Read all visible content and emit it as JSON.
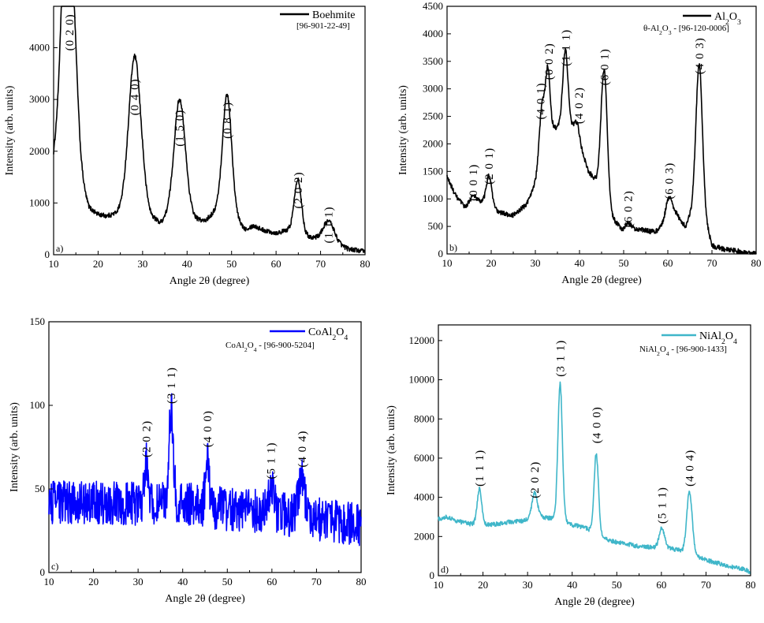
{
  "chart_data": [
    {
      "type": "line",
      "panel_label": "a)",
      "xlabel": "Angle 2θ (degree)",
      "ylabel": "Intensity (arb. units)",
      "xlim": [
        10,
        80
      ],
      "ylim": [
        0,
        4800
      ],
      "xticks": [
        10,
        20,
        30,
        40,
        50,
        60,
        70,
        80
      ],
      "yticks": [
        0,
        1000,
        2000,
        3000,
        4000
      ],
      "legend_position": "top-right",
      "series": [
        {
          "name": "Boehmite",
          "name_parts": [
            "Boehmite"
          ],
          "reference": "[96-901-22-49]",
          "reference_parts": [
            "[96-901-22-49]"
          ],
          "color": "#000000",
          "noise": 45,
          "baseline": [
            [
              10,
              1800
            ],
            [
              11,
              2300
            ],
            [
              12,
              3200
            ],
            [
              16,
              1300
            ],
            [
              18,
              900
            ],
            [
              20,
              780
            ],
            [
              22,
              750
            ],
            [
              24,
              800
            ],
            [
              26,
              950
            ],
            [
              30,
              1100
            ],
            [
              32,
              750
            ],
            [
              34,
              620
            ],
            [
              36,
              800
            ],
            [
              40,
              900
            ],
            [
              42,
              700
            ],
            [
              44,
              650
            ],
            [
              47,
              900
            ],
            [
              51,
              700
            ],
            [
              53,
              500
            ],
            [
              55,
              560
            ],
            [
              57,
              480
            ],
            [
              60,
              420
            ],
            [
              63,
              480
            ],
            [
              66,
              380
            ],
            [
              70,
              300
            ],
            [
              73,
              250
            ],
            [
              76,
              120
            ],
            [
              80,
              60
            ]
          ],
          "peaks": [
            [
              13.5,
              4050,
              1.4
            ],
            [
              28.2,
              2800,
              1.3
            ],
            [
              38.3,
              2150,
              1.2
            ],
            [
              49.0,
              2300,
              1.0
            ],
            [
              64.9,
              1050,
              0.8
            ],
            [
              71.8,
              380,
              1.2
            ]
          ]
        }
      ],
      "annotations": [
        {
          "label": "(0 2 0)",
          "x": 13.5,
          "y": 4300
        },
        {
          "label": "(0 4 0)",
          "x": 28.2,
          "y": 3050
        },
        {
          "label": "(1 5 0)",
          "x": 38.3,
          "y": 2450
        },
        {
          "label": "(0 8 1)",
          "x": 49.0,
          "y": 2600
        },
        {
          "label": "(2 0 2)",
          "x": 64.9,
          "y": 1250
        },
        {
          "label": "(1 1 1)",
          "x": 71.8,
          "y": 580
        }
      ]
    },
    {
      "type": "line",
      "panel_label": "b)",
      "xlabel": "Angle 2θ (degree)",
      "ylabel": "Intensity (arb. units)",
      "xlim": [
        10,
        80
      ],
      "ylim": [
        0,
        4500
      ],
      "xticks": [
        10,
        20,
        30,
        40,
        50,
        60,
        70,
        80
      ],
      "yticks": [
        0,
        500,
        1000,
        1500,
        2000,
        2500,
        3000,
        3500,
        4000,
        4500
      ],
      "legend_position": "top-right",
      "series": [
        {
          "name": "Al2O3",
          "name_parts": [
            "Al",
            "2",
            "O",
            "3"
          ],
          "reference": "θ-Al2O3 - [96-120-0006]",
          "reference_parts": [
            "θ-Al",
            "2",
            "O",
            "3",
            " - [96-120-0006]"
          ],
          "color": "#000000",
          "noise": 45,
          "baseline": [
            [
              10,
              1400
            ],
            [
              12,
              1050
            ],
            [
              14,
              850
            ],
            [
              16,
              900
            ],
            [
              18,
              950
            ],
            [
              22,
              750
            ],
            [
              25,
              700
            ],
            [
              28,
              900
            ],
            [
              30,
              1300
            ],
            [
              33,
              2300
            ],
            [
              36,
              2300
            ],
            [
              39,
              2300
            ],
            [
              42,
              1500
            ],
            [
              45,
              1200
            ],
            [
              47,
              700
            ],
            [
              50,
              400
            ],
            [
              53,
              450
            ],
            [
              57,
              400
            ],
            [
              59,
              500
            ],
            [
              62,
              700
            ],
            [
              64,
              500
            ],
            [
              66,
              900
            ],
            [
              68,
              800
            ],
            [
              70,
              150
            ],
            [
              73,
              80
            ],
            [
              78,
              30
            ],
            [
              80,
              0
            ]
          ],
          "peaks": [
            [
              15.9,
              150,
              0.8
            ],
            [
              19.5,
              550,
              0.6
            ],
            [
              31.5,
              900,
              0.6
            ],
            [
              32.8,
              1100,
              0.5
            ],
            [
              36.8,
              1400,
              0.6
            ],
            [
              39.5,
              200,
              0.5
            ],
            [
              45.6,
              2300,
              0.7
            ],
            [
              51.0,
              150,
              0.7
            ],
            [
              60.3,
              450,
              0.8
            ],
            [
              67.1,
              2600,
              0.7
            ]
          ]
        }
      ],
      "annotations": [
        {
          "label": "(0 0 1)",
          "x": 15.9,
          "y": 1300
        },
        {
          "label": "(2 0 1)",
          "x": 19.5,
          "y": 1600
        },
        {
          "label": "(4 0 1)",
          "x": 31.2,
          "y": 2780
        },
        {
          "label": "(0 0 2)",
          "x": 33.0,
          "y": 3500
        },
        {
          "label": "(1 1 1)",
          "x": 36.9,
          "y": 3750
        },
        {
          "label": "(4 0 2)",
          "x": 39.8,
          "y": 2700
        },
        {
          "label": "(6 0 1)",
          "x": 45.6,
          "y": 3400
        },
        {
          "label": "(6 0 2)",
          "x": 51.0,
          "y": 820
        },
        {
          "label": "(6 0 3)",
          "x": 60.3,
          "y": 1330
        },
        {
          "label": "(4 0 3)",
          "x": 67.1,
          "y": 3600
        }
      ]
    },
    {
      "type": "line",
      "panel_label": "c)",
      "xlabel": "Angle 2θ (degree)",
      "ylabel": "Intensity (arb. units)",
      "xlim": [
        10,
        80
      ],
      "ylim": [
        0,
        150
      ],
      "xticks": [
        10,
        20,
        30,
        40,
        50,
        60,
        70,
        80
      ],
      "yticks": [
        0,
        50,
        100,
        150
      ],
      "legend_position": "top-right",
      "series": [
        {
          "name": "CoAl2O4",
          "name_parts": [
            "CoAl",
            "2",
            "O",
            "4"
          ],
          "reference": "CoAl2O4 - [96-900-5204]",
          "reference_parts": [
            "CoAl",
            "2",
            "O",
            "4",
            " - [96-900-5204]"
          ],
          "color": "#0000ff",
          "noise": 13,
          "baseline": [
            [
              10,
              42
            ],
            [
              20,
              42
            ],
            [
              30,
              41
            ],
            [
              40,
              41
            ],
            [
              50,
              38
            ],
            [
              60,
              36
            ],
            [
              70,
              32
            ],
            [
              80,
              28
            ]
          ],
          "peaks": [
            [
              31.8,
              28,
              0.4
            ],
            [
              37.4,
              55,
              0.5
            ],
            [
              45.5,
              28,
              0.4
            ],
            [
              59.8,
              15,
              0.6
            ],
            [
              66.7,
              22,
              0.7
            ]
          ]
        }
      ],
      "annotations": [
        {
          "label": "(2 0 2)",
          "x": 31.8,
          "y": 80
        },
        {
          "label": "(3 1 1)",
          "x": 37.4,
          "y": 112
        },
        {
          "label": "(4 0 0)",
          "x": 45.5,
          "y": 86
        },
        {
          "label": "(5 1 1)",
          "x": 59.8,
          "y": 67
        },
        {
          "label": "(4 0 4)",
          "x": 66.7,
          "y": 74
        }
      ]
    },
    {
      "type": "line",
      "panel_label": "d)",
      "xlabel": "Angle 2θ (degree)",
      "ylabel": "Intensity (arb. units)",
      "xlim": [
        10,
        80
      ],
      "ylim": [
        0,
        12800
      ],
      "xticks": [
        10,
        20,
        30,
        40,
        50,
        60,
        70,
        80
      ],
      "yticks": [
        0,
        2000,
        4000,
        6000,
        8000,
        10000,
        12000
      ],
      "legend_position": "top-right",
      "series": [
        {
          "name": "NiAl2O4",
          "name_parts": [
            "NiAl",
            "2",
            "O",
            "4"
          ],
          "reference": "NiAl2O4 - [96-900-1433]",
          "reference_parts": [
            "NiAl",
            "2",
            "O",
            "4",
            " - [96-900-1433]"
          ],
          "color": "#3fb6c9",
          "noise": 110,
          "baseline": [
            [
              10,
              2900
            ],
            [
              12,
              3000
            ],
            [
              14,
              2800
            ],
            [
              17,
              2650
            ],
            [
              22,
              2600
            ],
            [
              26,
              2750
            ],
            [
              29,
              2800
            ],
            [
              33,
              3000
            ],
            [
              36,
              2900
            ],
            [
              40,
              2600
            ],
            [
              43,
              2450
            ],
            [
              47,
              1900
            ],
            [
              50,
              1700
            ],
            [
              55,
              1500
            ],
            [
              58,
              1450
            ],
            [
              62,
              1400
            ],
            [
              66,
              1200
            ],
            [
              70,
              800
            ],
            [
              75,
              500
            ],
            [
              79,
              300
            ],
            [
              80,
              150
            ]
          ],
          "peaks": [
            [
              19.2,
              1800,
              0.5
            ],
            [
              31.6,
              1300,
              0.6
            ],
            [
              37.3,
              7000,
              0.5
            ],
            [
              45.4,
              4100,
              0.5
            ],
            [
              60.1,
              1000,
              0.6
            ],
            [
              66.3,
              3100,
              0.6
            ]
          ]
        }
      ],
      "annotations": [
        {
          "label": "(1 1 1)",
          "x": 19.2,
          "y": 5500
        },
        {
          "label": "(2 0 2)",
          "x": 31.6,
          "y": 4900
        },
        {
          "label": "(3 1 1)",
          "x": 37.3,
          "y": 11100
        },
        {
          "label": "(4 0 0)",
          "x": 45.4,
          "y": 7700
        },
        {
          "label": "(5 1 1)",
          "x": 60.1,
          "y": 3600
        },
        {
          "label": "(4 0 4)",
          "x": 66.3,
          "y": 5500
        }
      ]
    }
  ]
}
